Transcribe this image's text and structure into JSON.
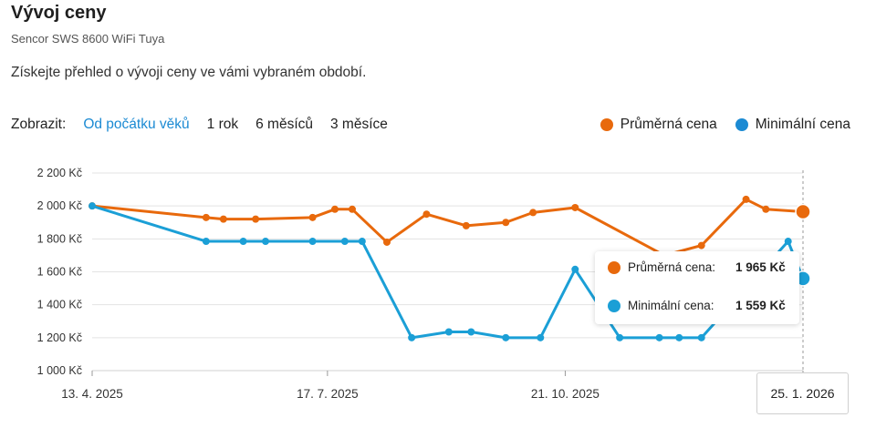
{
  "header": {
    "title": "Vývoj ceny",
    "subtitle": "Sencor SWS 8600 WiFi Tuya",
    "description": "Získejte přehled o vývoji ceny ve vámi vybraném období."
  },
  "controls": {
    "label": "Zobrazit:",
    "ranges": [
      "Od počátku věků",
      "1 rok",
      "6 měsíců",
      "3 měsíce"
    ],
    "active_range": "Od počátku věků"
  },
  "legend": {
    "avg_label": "Průměrná cena",
    "min_label": "Minimální cena"
  },
  "tooltip": {
    "avg_label": "Průměrná cena:",
    "avg_value": "1 965 Kč",
    "min_label": "Minimální cena:",
    "min_value": "1 559 Kč"
  },
  "hover_date": "25. 1. 2026",
  "colors": {
    "avg": "#e8690c",
    "min": "#1b9fd6",
    "active_link": "#1b8ad3",
    "grid": "#e3e3e3"
  },
  "chart_data": {
    "type": "line",
    "x_tick_labels": [
      "13. 4. 2025",
      "17. 7. 2025",
      "21. 10. 2025",
      "25. 1. 2026"
    ],
    "y_tick_labels": [
      "1 000 Kč",
      "1 200 Kč",
      "1 400 Kč",
      "1 600 Kč",
      "1 800 Kč",
      "2 000 Kč",
      "2 200 Kč"
    ],
    "ylim": [
      1000,
      2200
    ],
    "xlim": [
      "2025-04-13",
      "2026-01-25"
    ],
    "grid": true,
    "series": [
      {
        "name": "Průměrná cena",
        "color": "#e8690c",
        "points": [
          {
            "x": "2025-04-13",
            "y": 2000
          },
          {
            "x": "2025-05-29",
            "y": 1930
          },
          {
            "x": "2025-06-05",
            "y": 1920
          },
          {
            "x": "2025-06-18",
            "y": 1920
          },
          {
            "x": "2025-07-11",
            "y": 1930
          },
          {
            "x": "2025-07-20",
            "y": 1980
          },
          {
            "x": "2025-07-27",
            "y": 1980
          },
          {
            "x": "2025-08-10",
            "y": 1780
          },
          {
            "x": "2025-08-26",
            "y": 1950
          },
          {
            "x": "2025-09-11",
            "y": 1880
          },
          {
            "x": "2025-09-27",
            "y": 1900
          },
          {
            "x": "2025-10-08",
            "y": 1960
          },
          {
            "x": "2025-10-25",
            "y": 1990
          },
          {
            "x": "2025-11-30",
            "y": 1700
          },
          {
            "x": "2025-12-15",
            "y": 1760
          },
          {
            "x": "2026-01-02",
            "y": 2040
          },
          {
            "x": "2026-01-10",
            "y": 1980
          },
          {
            "x": "2026-01-25",
            "y": 1965
          }
        ]
      },
      {
        "name": "Minimální cena",
        "color": "#1b9fd6",
        "points": [
          {
            "x": "2025-04-13",
            "y": 2000
          },
          {
            "x": "2025-05-29",
            "y": 1785
          },
          {
            "x": "2025-06-13",
            "y": 1785
          },
          {
            "x": "2025-06-22",
            "y": 1785
          },
          {
            "x": "2025-07-11",
            "y": 1785
          },
          {
            "x": "2025-07-24",
            "y": 1785
          },
          {
            "x": "2025-07-31",
            "y": 1785
          },
          {
            "x": "2025-08-20",
            "y": 1200
          },
          {
            "x": "2025-09-04",
            "y": 1235
          },
          {
            "x": "2025-09-13",
            "y": 1235
          },
          {
            "x": "2025-09-27",
            "y": 1200
          },
          {
            "x": "2025-10-11",
            "y": 1200
          },
          {
            "x": "2025-10-25",
            "y": 1615
          },
          {
            "x": "2025-11-12",
            "y": 1200
          },
          {
            "x": "2025-11-28",
            "y": 1200
          },
          {
            "x": "2025-12-06",
            "y": 1200
          },
          {
            "x": "2025-12-15",
            "y": 1200
          },
          {
            "x": "2026-01-19",
            "y": 1785
          },
          {
            "x": "2026-01-25",
            "y": 1559
          }
        ]
      }
    ]
  }
}
